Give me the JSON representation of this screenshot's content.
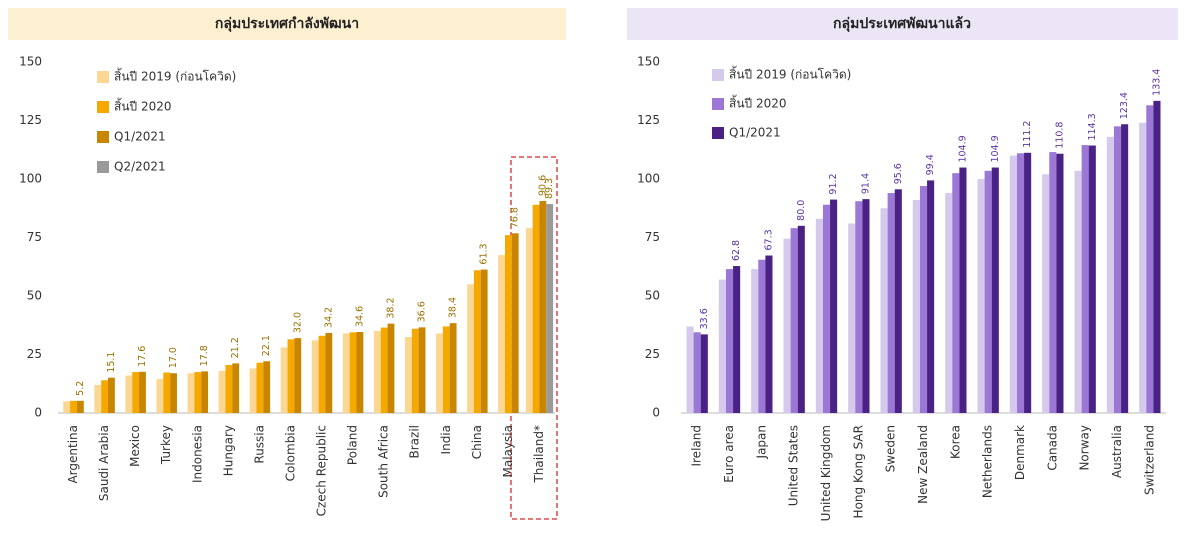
{
  "chart_data": [
    {
      "type": "bar",
      "title": "กลุ่มประเทศกำลังพัฒนา",
      "categories": [
        "Argentina",
        "Saudi Arabia",
        "Mexico",
        "Turkey",
        "Indonesia",
        "Hungary",
        "Russia",
        "Colombia",
        "Czech Republic",
        "Poland",
        "South Africa",
        "Brazil",
        "India",
        "China",
        "Malaysia",
        "Thailand*"
      ],
      "series": [
        {
          "name": "สิ้นปี 2019 (ก่อนโควิด)",
          "color": "#fcd693",
          "values": [
            5,
            12,
            16,
            14.5,
            17,
            18,
            19,
            28,
            31,
            34,
            35,
            32.5,
            34,
            55,
            67.5,
            79
          ]
        },
        {
          "name": "สิ้นปี 2020",
          "color": "#f5a800",
          "values": [
            5.2,
            14,
            17.5,
            17.3,
            17.5,
            20.5,
            21.5,
            31.5,
            33,
            34.5,
            36.5,
            36,
            37,
            61,
            76,
            89
          ]
        },
        {
          "name": "Q1/2021",
          "color": "#c88600",
          "values": [
            5.2,
            15.1,
            17.6,
            17.0,
            17.8,
            21.2,
            22.1,
            32.0,
            34.2,
            34.6,
            38.2,
            36.6,
            38.4,
            61.3,
            76.8,
            90.6
          ],
          "value_labels": [
            "5.2",
            "15.1",
            "17.6",
            "17.0",
            "17.8",
            "21.2",
            "22.1",
            "32.0",
            "34.2",
            "34.6",
            "38.2",
            "36.6",
            "38.4",
            "61.3",
            "76.8",
            "90.6"
          ]
        },
        {
          "name": "Q2/2021",
          "color": "#9a9a9a",
          "values": [
            null,
            null,
            null,
            null,
            null,
            null,
            null,
            null,
            null,
            null,
            null,
            null,
            null,
            null,
            null,
            89.3
          ],
          "value_labels": [
            null,
            null,
            null,
            null,
            null,
            null,
            null,
            null,
            null,
            null,
            null,
            null,
            null,
            null,
            null,
            "89.3"
          ]
        }
      ],
      "ylim": [
        0,
        150
      ],
      "yticks": [
        0,
        25,
        50,
        75,
        100,
        125,
        150
      ],
      "label_color": "#9a7200"
    },
    {
      "type": "bar",
      "title": "กลุ่มประเทศพัฒนาแล้ว",
      "categories": [
        "Ireland",
        "Euro area",
        "Japan",
        "United States",
        "United Kingdom",
        "Hong Kong SAR",
        "Sweden",
        "New Zealand",
        "Korea",
        "Netherlands",
        "Denmark",
        "Canada",
        "Norway",
        "Australia",
        "Switzerland"
      ],
      "series": [
        {
          "name": "สิ้นปี 2019 (ก่อนโควิด)",
          "color": "#d5c9ec",
          "values": [
            37,
            57,
            61.5,
            74.5,
            83,
            81,
            87.5,
            91,
            94,
            100,
            110,
            102,
            103.5,
            118,
            124
          ]
        },
        {
          "name": "สิ้นปี 2020",
          "color": "#9b78d6",
          "values": [
            34.5,
            61.5,
            65.5,
            79,
            89,
            90.5,
            94,
            97,
            102.5,
            103.5,
            111,
            111.5,
            114.5,
            122.5,
            131.5
          ]
        },
        {
          "name": "Q1/2021",
          "color": "#4a2285",
          "values": [
            33.6,
            62.8,
            67.3,
            80.0,
            91.2,
            91.4,
            95.6,
            99.4,
            104.9,
            104.9,
            111.2,
            110.8,
            114.3,
            123.4,
            133.4
          ],
          "value_labels": [
            "33.6",
            "62.8",
            "67.3",
            "80.0",
            "91.2",
            "91.4",
            "95.6",
            "99.4",
            "104.9",
            "104.9",
            "111.2",
            "110.8",
            "114.3",
            "123.4",
            "133.4"
          ]
        }
      ],
      "ylim": [
        0,
        150
      ],
      "yticks": [
        0,
        25,
        50,
        75,
        100,
        125,
        150
      ],
      "label_color": "#5a34a0"
    }
  ]
}
